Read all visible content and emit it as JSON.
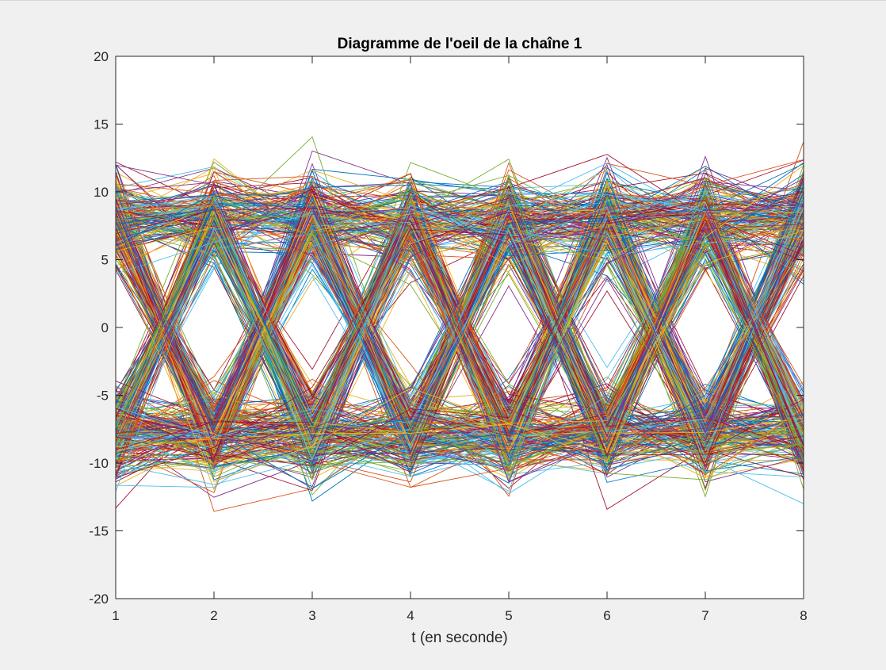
{
  "chart_data": {
    "type": "line",
    "title": "Diagramme de l'oeil de la chaîne 1",
    "xlabel": "t (en seconde)",
    "ylabel": "",
    "xlim": [
      1,
      8
    ],
    "ylim": [
      -20,
      20
    ],
    "x_ticks": [
      1,
      2,
      3,
      4,
      5,
      6,
      7,
      8
    ],
    "x_tick_labels": [
      "1",
      "2",
      "3",
      "4",
      "5",
      "6",
      "7",
      "8"
    ],
    "y_ticks": [
      -20,
      -15,
      -10,
      -5,
      0,
      5,
      10,
      15,
      20
    ],
    "y_tick_labels": [
      "-20",
      "-15",
      "-10",
      "-5",
      "0",
      "5",
      "10",
      "15",
      "20"
    ],
    "grid": false,
    "legend": "none",
    "symbol_levels": [
      -8,
      8
    ],
    "noise_std": 1.6,
    "trace_count": 600,
    "colors": [
      "#0072bd",
      "#d95319",
      "#edb120",
      "#7e2f8e",
      "#77ac30",
      "#4dbeee",
      "#a2142f"
    ]
  }
}
